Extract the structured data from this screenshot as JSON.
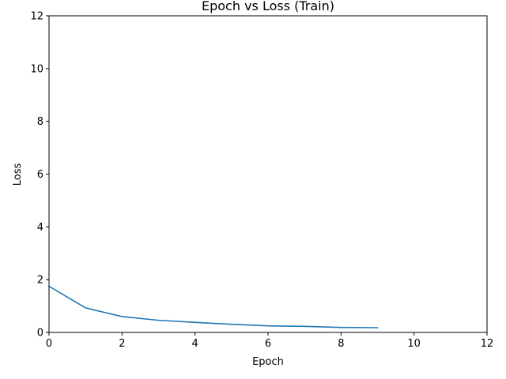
{
  "chart_data": {
    "type": "line",
    "title": "Epoch vs Loss (Train)",
    "xlabel": "Epoch",
    "ylabel": "Loss",
    "xlim": [
      0,
      12
    ],
    "ylim": [
      0,
      12
    ],
    "xticks": [
      0,
      2,
      4,
      6,
      8,
      10,
      12
    ],
    "yticks": [
      0,
      2,
      4,
      6,
      8,
      10,
      12
    ],
    "grid": false,
    "series": [
      {
        "color": "#1f77b4",
        "x": [
          0,
          1,
          2,
          3,
          4,
          5,
          6,
          7,
          8,
          9
        ],
        "y": [
          1.75,
          0.93,
          0.6,
          0.46,
          0.38,
          0.31,
          0.25,
          0.23,
          0.19,
          0.18
        ]
      }
    ]
  }
}
